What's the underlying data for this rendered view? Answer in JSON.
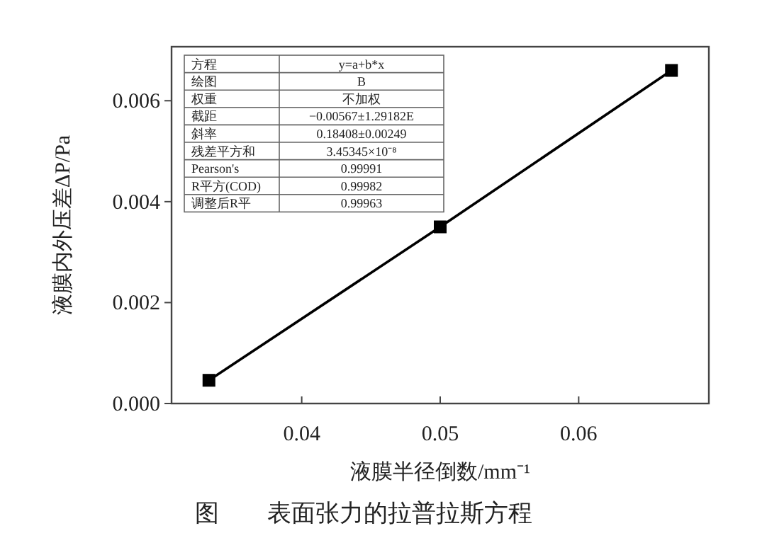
{
  "chart_data": {
    "type": "line",
    "title": "图　　表面张力的拉普拉斯方程",
    "xlabel": "液膜半径倒数/mm⁻¹",
    "ylabel": "液膜内外压差ΔP/Pa",
    "x": [
      0.0333,
      0.05,
      0.0667
    ],
    "series": [
      {
        "color": "#000000",
        "values": [
          0.00046,
          0.0035,
          0.0066
        ]
      }
    ],
    "xlim": [
      0.0306,
      0.0694
    ],
    "ylim": [
      0,
      0.00707
    ],
    "xticks": [
      {
        "value": 0.04,
        "label": "0.04"
      },
      {
        "value": 0.05,
        "label": "0.05"
      },
      {
        "value": 0.06,
        "label": "0.06"
      }
    ],
    "yticks": [
      {
        "value": 0,
        "label": "0.000"
      },
      {
        "value": 0.002,
        "label": "0.002"
      },
      {
        "value": 0.004,
        "label": "0.004"
      },
      {
        "value": 0.006,
        "label": "0.006"
      }
    ],
    "marker": "square",
    "line_style": "solid",
    "grid": false,
    "annotations": [
      "方程",
      "y=a+b*x",
      "绘图",
      "B",
      "权重",
      "不加权",
      "截距",
      "−0.00567±1.29182E",
      "斜率",
      "0.18408±0.00249",
      "残差平方和",
      "3.45345×10⁻⁸",
      "Pearson's",
      "0.99991",
      "R平方(COD)",
      "0.99982",
      "调整后R平",
      "0.99963"
    ]
  }
}
